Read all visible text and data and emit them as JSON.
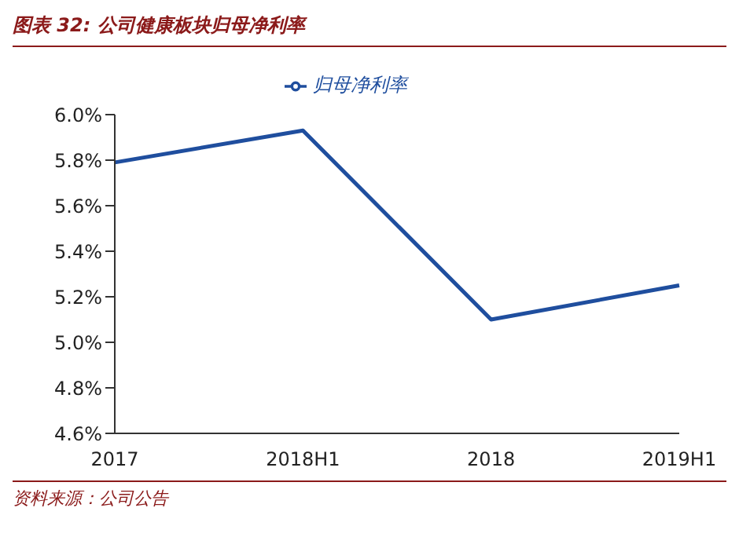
{
  "chart_data": {
    "type": "line",
    "title": "图表 32: 公司健康板块归母净利率",
    "categories": [
      "2017",
      "2018H1",
      "2018",
      "2019H1"
    ],
    "series": [
      {
        "name": "归母净利率",
        "color": "#1f4e9e",
        "values": [
          5.79,
          5.93,
          5.1,
          5.25
        ]
      }
    ],
    "ylim": [
      4.6,
      6.0
    ],
    "yticks": [
      {
        "value": 4.6,
        "label": "4.6%"
      },
      {
        "value": 4.8,
        "label": "4.8%"
      },
      {
        "value": 5.0,
        "label": "5.0%"
      },
      {
        "value": 5.2,
        "label": "5.2%"
      },
      {
        "value": 5.4,
        "label": "5.4%"
      },
      {
        "value": 5.6,
        "label": "5.6%"
      },
      {
        "value": 5.8,
        "label": "5.8%"
      },
      {
        "value": 6.0,
        "label": "6.0%"
      }
    ],
    "grid": false,
    "legend": "top",
    "marker": "none",
    "line_style": "solid",
    "annotations": [
      "资料来源：公司公告"
    ]
  }
}
